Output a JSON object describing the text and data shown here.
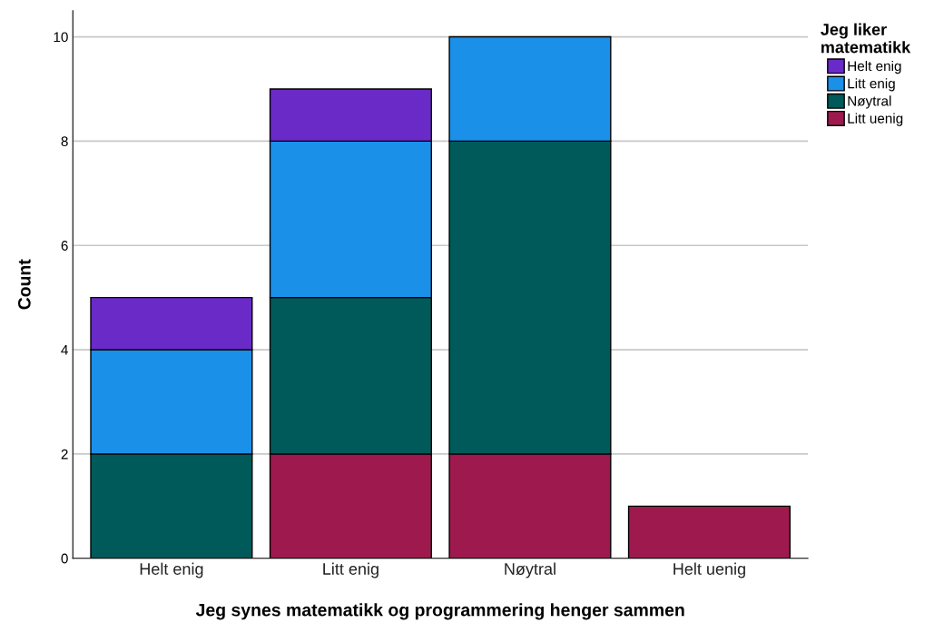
{
  "chart_data": {
    "type": "bar",
    "stacked": true,
    "xlabel": "Jeg synes matematikk og programmering henger sammen",
    "ylabel": "Count",
    "legend_title": "Jeg liker\nmatematikk",
    "categories": [
      "Helt enig",
      "Litt enig",
      "Nøytral",
      "Helt uenig"
    ],
    "series": [
      {
        "name": "Litt uenig",
        "color": "#9e1a4e",
        "values": [
          null,
          2,
          2,
          1
        ]
      },
      {
        "name": "Nøytral",
        "color": "#005a5a",
        "values": [
          2,
          3,
          6,
          null
        ]
      },
      {
        "name": "Litt enig",
        "color": "#1a90e8",
        "values": [
          2,
          3,
          2,
          null
        ]
      },
      {
        "name": "Helt enig",
        "color": "#6a2ac8",
        "values": [
          1,
          1,
          null,
          null
        ]
      }
    ],
    "ylim": [
      0,
      10.5
    ],
    "yticks": [
      0,
      2,
      4,
      6,
      8,
      10
    ],
    "grid": "y",
    "legend": "right"
  }
}
